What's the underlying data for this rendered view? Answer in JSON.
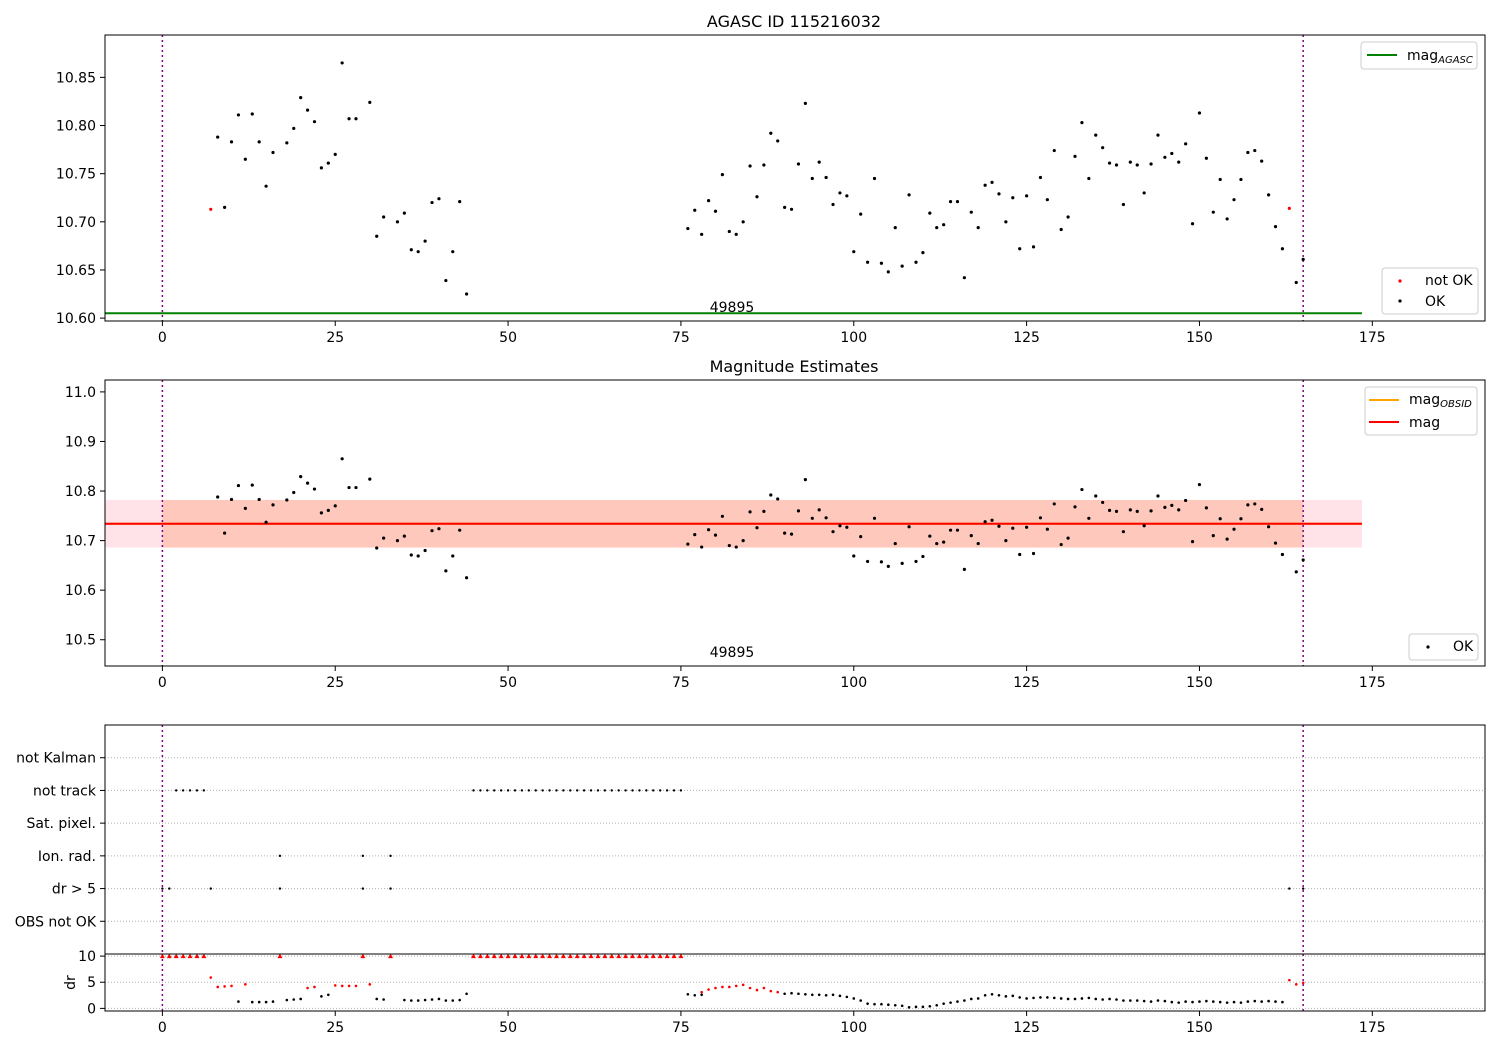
{
  "figure": {
    "title": "AGASC ID 115216032",
    "panel2_title": "Magnitude Estimates",
    "obsid_label": "49895"
  },
  "colors": {
    "ok": "#000000",
    "not_ok": "#ff0000",
    "mag_agasc": "#008000",
    "mag_obsid": "#ffa500",
    "mag": "#ff0000",
    "band_outer": "#ffc0cb",
    "band_inner": "#ffa07a",
    "obs_boundary": "#800080"
  },
  "chart_data": [
    {
      "type": "scatter",
      "title": "AGASC ID 115216032",
      "xlim": [
        -8.3,
        191.3
      ],
      "ylim": [
        10.597,
        10.894
      ],
      "xticks": [
        0,
        25,
        50,
        75,
        100,
        125,
        150,
        175
      ],
      "yticks": [
        10.6,
        10.65,
        10.7,
        10.75,
        10.8,
        10.85
      ],
      "ytick_labels": [
        "10.60",
        "10.65",
        "10.70",
        "10.75",
        "10.80",
        "10.85"
      ],
      "grid": false,
      "legend_upper": {
        "position": "top-right",
        "entries": [
          "mag_AGASC"
        ]
      },
      "legend_lower": {
        "position": "bottom-right",
        "entries": [
          "not OK",
          "OK"
        ]
      },
      "obs_boundaries": [
        0,
        165
      ],
      "hlines": [
        {
          "name": "mag_AGASC",
          "y": 10.605,
          "x_range": [
            -8.3,
            173.5
          ]
        }
      ],
      "series": [
        {
          "name": "not OK",
          "x": [
            7,
            163
          ],
          "y": [
            10.713,
            10.714
          ]
        },
        {
          "name": "OK",
          "x": [
            8,
            9,
            10,
            11,
            12,
            13,
            14,
            15,
            16,
            18,
            19,
            20,
            21,
            22,
            23,
            24,
            25,
            26,
            27,
            28,
            30,
            31,
            32,
            34,
            35,
            36,
            37,
            38,
            39,
            40,
            41,
            42,
            43,
            44,
            76,
            77,
            78,
            79,
            80,
            81,
            82,
            83,
            84,
            85,
            86,
            87,
            88,
            89,
            90,
            91,
            92,
            93,
            94,
            95,
            96,
            97,
            98,
            99,
            100,
            101,
            102,
            103,
            104,
            105,
            106,
            107,
            108,
            109,
            110,
            111,
            112,
            113,
            114,
            115,
            116,
            117,
            118,
            119,
            120,
            121,
            122,
            123,
            124,
            125,
            126,
            127,
            128,
            129,
            130,
            131,
            132,
            133,
            134,
            135,
            136,
            137,
            138,
            139,
            140,
            141,
            142,
            143,
            144,
            145,
            146,
            147,
            148,
            149,
            150,
            151,
            152,
            153,
            154,
            155,
            156,
            157,
            158,
            159,
            160,
            161,
            162,
            164,
            165
          ],
          "y": [
            10.788,
            10.715,
            10.783,
            10.811,
            10.765,
            10.812,
            10.783,
            10.737,
            10.772,
            10.782,
            10.797,
            10.829,
            10.816,
            10.804,
            10.756,
            10.761,
            10.77,
            10.865,
            10.807,
            10.807,
            10.824,
            10.685,
            10.705,
            10.7,
            10.709,
            10.671,
            10.669,
            10.68,
            10.72,
            10.724,
            10.639,
            10.669,
            10.721,
            10.625,
            10.693,
            10.712,
            10.687,
            10.722,
            10.711,
            10.749,
            10.69,
            10.687,
            10.7,
            10.758,
            10.726,
            10.759,
            10.792,
            10.784,
            10.715,
            10.713,
            10.76,
            10.823,
            10.745,
            10.762,
            10.746,
            10.718,
            10.73,
            10.727,
            10.669,
            10.708,
            10.658,
            10.745,
            10.657,
            10.648,
            10.694,
            10.654,
            10.728,
            10.658,
            10.668,
            10.709,
            10.694,
            10.697,
            10.721,
            10.721,
            10.642,
            10.71,
            10.694,
            10.738,
            10.741,
            10.729,
            10.7,
            10.725,
            10.672,
            10.727,
            10.674,
            10.746,
            10.723,
            10.774,
            10.692,
            10.705,
            10.768,
            10.803,
            10.745,
            10.79,
            10.777,
            10.761,
            10.759,
            10.718,
            10.762,
            10.759,
            10.73,
            10.76,
            10.79,
            10.767,
            10.771,
            10.762,
            10.781,
            10.698,
            10.813,
            10.766,
            10.71,
            10.744,
            10.703,
            10.723,
            10.744,
            10.772,
            10.774,
            10.763,
            10.728,
            10.695,
            10.672,
            10.637,
            10.661
          ]
        }
      ]
    },
    {
      "type": "scatter",
      "title": "Magnitude Estimates",
      "xlim": [
        -8.3,
        191.3
      ],
      "ylim": [
        10.447,
        11.024
      ],
      "xticks": [
        0,
        25,
        50,
        75,
        100,
        125,
        150,
        175
      ],
      "yticks": [
        10.5,
        10.6,
        10.7,
        10.8,
        10.9,
        11.0
      ],
      "ytick_labels": [
        "10.5",
        "10.6",
        "10.7",
        "10.8",
        "10.9",
        "11.0"
      ],
      "grid": false,
      "legend_upper": {
        "position": "top-right",
        "entries": [
          "mag_OBSID",
          "mag"
        ]
      },
      "legend_lower": {
        "position": "bottom-right",
        "entries": [
          "OK"
        ]
      },
      "obs_boundaries": [
        0,
        165
      ],
      "mag_line": 10.734,
      "band_outer": [
        10.686,
        10.782
      ],
      "band_inner": [
        10.686,
        10.782
      ],
      "band_x_range": [
        -8.3,
        173.5
      ],
      "inner_band_x_range": [
        0,
        165
      ]
    },
    {
      "type": "scatter",
      "title": "",
      "flag_rows": [
        "not Kalman",
        "not track",
        "Sat. pixel.",
        "Ion. rad.",
        "dr > 5",
        "OBS not OK"
      ],
      "flags": {
        "not Kalman": [],
        "not track": [
          2,
          3,
          4,
          5,
          6,
          45,
          46,
          47,
          48,
          49,
          50,
          51,
          52,
          53,
          54,
          55,
          56,
          57,
          58,
          59,
          60,
          61,
          62,
          63,
          64,
          65,
          66,
          67,
          68,
          69,
          70,
          71,
          72,
          73,
          74,
          75
        ],
        "Sat. pixel.": [],
        "Ion. rad.": [
          17,
          29,
          33
        ],
        "dr > 5": [
          0,
          1,
          7,
          17,
          29,
          33,
          163,
          165
        ],
        "OBS not OK": []
      },
      "dr_ylabel": "dr",
      "dr_yticks": [
        0,
        5,
        10
      ],
      "dr_ylim": [
        -0.5,
        10.4
      ],
      "dr_cap": 10,
      "dr_not_ok": {
        "x": [
          0,
          1,
          2,
          3,
          4,
          5,
          6,
          7,
          8,
          9,
          10,
          12,
          17,
          21,
          22,
          25,
          26,
          27,
          28,
          29,
          30,
          33,
          45,
          46,
          47,
          48,
          49,
          50,
          51,
          52,
          53,
          54,
          55,
          56,
          57,
          58,
          59,
          60,
          61,
          62,
          63,
          64,
          65,
          66,
          67,
          68,
          69,
          70,
          71,
          72,
          73,
          74,
          75,
          78,
          79,
          80,
          81,
          82,
          83,
          84,
          85,
          86,
          87,
          88,
          89,
          163,
          164,
          165
        ],
        "y": [
          10,
          10,
          10,
          10,
          10,
          10,
          10,
          5.9,
          4.1,
          4.2,
          4.3,
          4.6,
          10,
          3.9,
          4.1,
          4.4,
          4.3,
          4.3,
          4.3,
          10,
          4.6,
          10,
          10,
          10,
          10,
          10,
          10,
          10,
          10,
          10,
          10,
          10,
          10,
          10,
          10,
          10,
          10,
          10,
          10,
          10,
          10,
          10,
          10,
          10,
          10,
          10,
          10,
          10,
          10,
          10,
          10,
          10,
          10,
          3.1,
          3.6,
          3.9,
          4.1,
          4.1,
          4.3,
          4.5,
          3.9,
          3.5,
          3.9,
          3.3,
          3.1,
          5.4,
          4.6,
          4.9
        ]
      },
      "dr_ok": {
        "x": [
          11,
          13,
          14,
          15,
          16,
          18,
          19,
          20,
          23,
          24,
          31,
          32,
          35,
          36,
          37,
          38,
          39,
          40,
          41,
          42,
          43,
          44,
          76,
          77,
          78,
          90,
          91,
          92,
          93,
          94,
          95,
          96,
          97,
          98,
          99,
          100,
          101,
          102,
          103,
          104,
          105,
          106,
          107,
          108,
          109,
          110,
          111,
          112,
          113,
          114,
          115,
          116,
          117,
          118,
          119,
          120,
          121,
          122,
          123,
          124,
          125,
          126,
          127,
          128,
          129,
          130,
          131,
          132,
          133,
          134,
          135,
          136,
          137,
          138,
          139,
          140,
          141,
          142,
          143,
          144,
          145,
          146,
          147,
          148,
          149,
          150,
          151,
          152,
          153,
          154,
          155,
          156,
          157,
          158,
          159,
          160,
          161,
          162
        ],
        "y": [
          1.3,
          1.2,
          1.2,
          1.2,
          1.3,
          1.6,
          1.7,
          1.8,
          2.3,
          2.6,
          1.8,
          1.7,
          1.6,
          1.5,
          1.5,
          1.6,
          1.7,
          1.8,
          1.5,
          1.5,
          1.6,
          2.8,
          2.7,
          2.5,
          2.6,
          2.8,
          2.9,
          2.8,
          2.7,
          2.6,
          2.6,
          2.5,
          2.6,
          2.4,
          2.2,
          1.9,
          1.5,
          0.9,
          0.8,
          0.8,
          0.7,
          0.6,
          0.5,
          0.2,
          0.3,
          0.3,
          0.4,
          0.6,
          0.9,
          1.1,
          1.3,
          1.5,
          1.8,
          1.9,
          2.5,
          2.7,
          2.5,
          2.3,
          2.4,
          2.1,
          1.9,
          2.0,
          2.1,
          2.1,
          2.0,
          1.9,
          1.8,
          1.8,
          1.9,
          2.0,
          1.8,
          1.7,
          1.8,
          1.7,
          1.5,
          1.5,
          1.5,
          1.4,
          1.3,
          1.5,
          1.4,
          1.2,
          1.1,
          1.3,
          1.2,
          1.3,
          1.4,
          1.3,
          1.2,
          1.1,
          1.2,
          1.1,
          1.3,
          1.4,
          1.3,
          1.4,
          1.3,
          1.2
        ]
      },
      "xlim": [
        -8.3,
        191.3
      ],
      "xticks": [
        0,
        25,
        50,
        75,
        100,
        125,
        150,
        175
      ],
      "obs_boundaries": [
        0,
        165
      ]
    }
  ]
}
